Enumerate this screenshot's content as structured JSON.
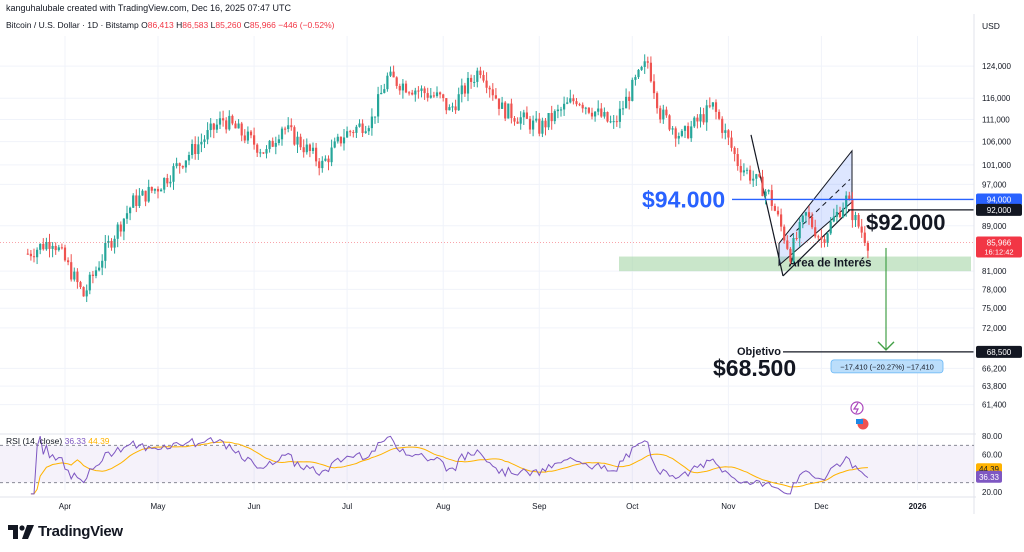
{
  "header": {
    "attribution": "kanguhalubale created with TradingView.com, Dec 16, 2025 07:47 UTC",
    "symbol": "Bitcoin / U.S. Dollar · 1D · Bitstamp",
    "ohlc": [
      {
        "key": "O",
        "value": "86,413"
      },
      {
        "key": "H",
        "value": "86,583"
      },
      {
        "key": "L",
        "value": "85,260"
      },
      {
        "key": "C",
        "value": "85,966"
      }
    ],
    "change": "−446 (−0.52%)",
    "currency": "USD"
  },
  "rsi": {
    "label": "RSI (14, close)",
    "value": "36.33",
    "ma": "44.39"
  },
  "brand": {
    "name": "TradingView"
  },
  "colors": {
    "up": "#26a69a",
    "down": "#ef5350",
    "level": "#2962ff",
    "zone": "#a5d6a7",
    "rsi": "#7e57c2",
    "rsi_ma": "#ffb300"
  },
  "chart_data": {
    "type": "candlestick",
    "y_scale": "log",
    "ylim": [
      58000,
      132000
    ],
    "y_ticks": [
      "124,000",
      "116,000",
      "111,000",
      "106,000",
      "101,000",
      "97,000",
      "89,000",
      "81,000",
      "78,000",
      "75,000",
      "72,000",
      "66,200",
      "63,800",
      "61,400"
    ],
    "x_ticks": [
      "Apr",
      "May",
      "Jun",
      "Jul",
      "Aug",
      "Sep",
      "Oct",
      "Nov",
      "Dec",
      "2026"
    ],
    "price_path": [
      [
        "2025-03-20",
        84000
      ],
      [
        "2025-03-28",
        86500
      ],
      [
        "2025-04-07",
        77000
      ],
      [
        "2025-04-14",
        84500
      ],
      [
        "2025-04-23",
        93500
      ],
      [
        "2025-05-01",
        96500
      ],
      [
        "2025-05-12",
        104000
      ],
      [
        "2025-05-22",
        111000
      ],
      [
        "2025-06-05",
        103500
      ],
      [
        "2025-06-10",
        109500
      ],
      [
        "2025-06-20",
        103000
      ],
      [
        "2025-06-23",
        101000
      ],
      [
        "2025-06-30",
        107500
      ],
      [
        "2025-07-09",
        111000
      ],
      [
        "2025-07-14",
        121000
      ],
      [
        "2025-07-22",
        118500
      ],
      [
        "2025-07-31",
        116000
      ],
      [
        "2025-08-03",
        113000
      ],
      [
        "2025-08-13",
        123500
      ],
      [
        "2025-08-20",
        113500
      ],
      [
        "2025-09-01",
        109000
      ],
      [
        "2025-09-13",
        116000
      ],
      [
        "2025-09-25",
        109500
      ],
      [
        "2025-10-02",
        120000
      ],
      [
        "2025-10-06",
        125000
      ],
      [
        "2025-10-10",
        112500
      ],
      [
        "2025-10-17",
        107000
      ],
      [
        "2025-10-27",
        114000
      ],
      [
        "2025-11-04",
        101500
      ],
      [
        "2025-11-14",
        95000
      ],
      [
        "2025-11-21",
        84000
      ],
      [
        "2025-11-26",
        91000
      ],
      [
        "2025-12-01",
        86500
      ],
      [
        "2025-12-09",
        94000
      ],
      [
        "2025-12-12",
        90000
      ],
      [
        "2025-12-16",
        85966
      ]
    ],
    "levels": [
      {
        "label": "$94.000",
        "price_tag": "94,000",
        "value": 94000
      },
      {
        "label": "$92.000",
        "price_tag": "92,000",
        "value": 92000
      },
      {
        "label": "Objetivo",
        "big_label": "$68.500",
        "price_tag": "68,500",
        "value": 68500
      }
    ],
    "last_price": {
      "value": "85,966",
      "countdown": "16:12:42"
    },
    "zone": {
      "label": "Área de Interés",
      "low": 81000,
      "high": 83500
    },
    "measure": {
      "label": "−17,410 (−20.27%) −17,410"
    },
    "rsi_ticks": [
      "80.00",
      "60.00",
      "40.00",
      "20.00"
    ],
    "rsi_levels": [
      70,
      30
    ],
    "rsi_last": {
      "rsi": "36.33",
      "ma": "44.39"
    }
  }
}
